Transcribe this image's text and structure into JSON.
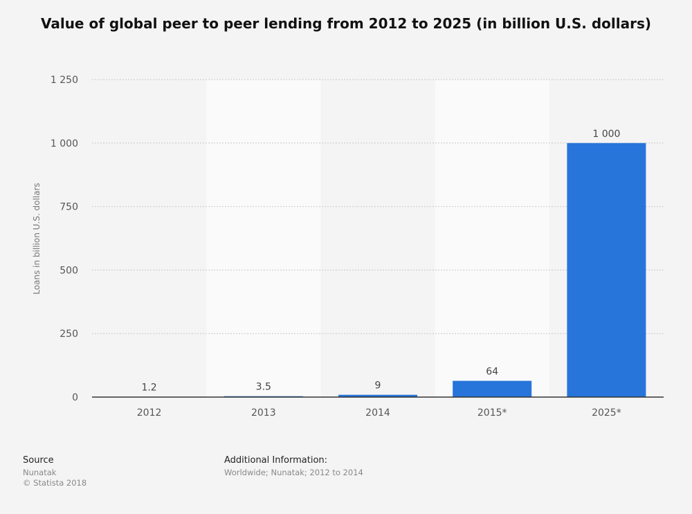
{
  "chart_data": {
    "type": "bar",
    "title": "Value of global peer to peer lending from 2012 to 2025 (in billion U.S. dollars)",
    "xlabel": "",
    "ylabel": "Loans in billion U.S. dollars",
    "categories": [
      "2012",
      "2013",
      "2014",
      "2015*",
      "2025*"
    ],
    "values": [
      1.2,
      3.5,
      9,
      64,
      1000
    ],
    "value_labels": [
      "1.2",
      "3.5",
      "9",
      "64",
      "1 000"
    ],
    "ylim": [
      0,
      1250
    ],
    "yticks": [
      0,
      250,
      500,
      750,
      1000,
      1250
    ],
    "ytick_labels": [
      "0",
      "250",
      "500",
      "750",
      "1 000",
      "1 250"
    ],
    "grid": true,
    "bar_color": "#2775db"
  },
  "footer": {
    "source_heading": "Source",
    "source_name": "Nunatak",
    "copyright": "© Statista 2018",
    "info_heading": "Additional Information:",
    "info_text": "Worldwide; Nunatak; 2012 to 2014"
  }
}
